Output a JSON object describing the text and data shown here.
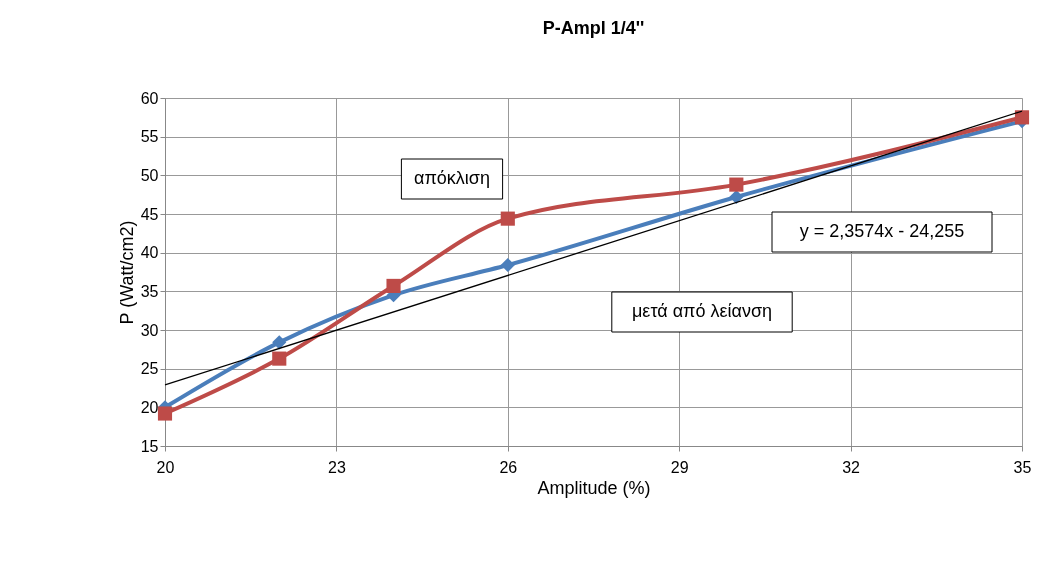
{
  "chart_data": {
    "type": "line",
    "title": "P-Ampl 1/4''",
    "xlabel": "Amplitude (%)",
    "ylabel": "P (Watt/cm2)",
    "x": [
      20,
      22,
      24,
      26,
      30,
      35
    ],
    "series": [
      {
        "color": "#4a7ebb",
        "values": [
          20.0,
          28.4,
          34.5,
          38.4,
          47.2,
          57.0
        ],
        "marker": "diamond"
      },
      {
        "color": "#be4b48",
        "values": [
          19.2,
          26.3,
          35.7,
          44.4,
          48.8,
          57.5
        ],
        "marker": "square"
      },
      {
        "type": "line",
        "color": "#000000",
        "x": [
          20,
          35
        ],
        "values": [
          22.9,
          58.3
        ],
        "marker": "none"
      }
    ],
    "annotations": [
      "απόκλιση",
      "μετά από λείανση",
      "y = 2,3574x - 24,255"
    ],
    "xlim": [
      20,
      35
    ],
    "xticks": [
      20,
      23,
      26,
      29,
      32,
      35
    ],
    "ylim": [
      15,
      60
    ],
    "yticks": [
      15,
      20,
      25,
      30,
      35,
      40,
      45,
      50,
      55,
      60
    ],
    "grid": true
  }
}
